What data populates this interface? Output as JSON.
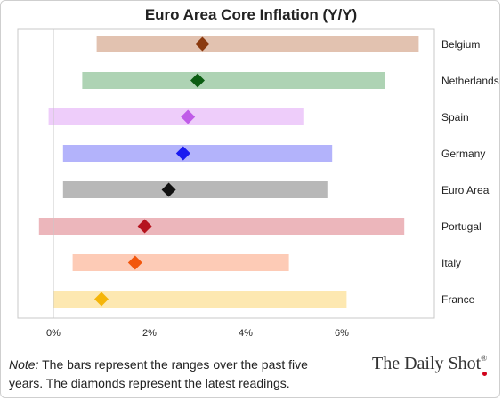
{
  "chart_data": {
    "type": "range-bar",
    "title": "Euro Area Core Inflation (Y/Y)",
    "xlim": [
      -0.3,
      7.7
    ],
    "xticks": [
      0,
      2,
      4,
      6
    ],
    "tick_format": "{v}%",
    "grid": false,
    "rows": [
      {
        "label": "Belgium",
        "min": 0.9,
        "max": 7.6,
        "latest": 3.1,
        "bar_color": "#e2c2b0",
        "marker_color": "#8b3a0f"
      },
      {
        "label": "Netherlands",
        "min": 0.6,
        "max": 6.9,
        "latest": 3.0,
        "bar_color": "#aed3b4",
        "marker_color": "#0b5d12"
      },
      {
        "label": "Spain",
        "min": -0.1,
        "max": 5.2,
        "latest": 2.8,
        "bar_color": "#eecdfa",
        "marker_color": "#c05ce8"
      },
      {
        "label": "Germany",
        "min": 0.2,
        "max": 5.8,
        "latest": 2.7,
        "bar_color": "#b3b3fb",
        "marker_color": "#1a1af0"
      },
      {
        "label": "Euro Area",
        "min": 0.2,
        "max": 5.7,
        "latest": 2.4,
        "bar_color": "#b8b8b8",
        "marker_color": "#111111"
      },
      {
        "label": "Portugal",
        "min": -0.3,
        "max": 7.3,
        "latest": 1.9,
        "bar_color": "#ecb6bb",
        "marker_color": "#b5141e"
      },
      {
        "label": "Italy",
        "min": 0.4,
        "max": 4.9,
        "latest": 1.7,
        "bar_color": "#fdcbb6",
        "marker_color": "#f2560c"
      },
      {
        "label": "France",
        "min": 0.0,
        "max": 6.1,
        "latest": 1.0,
        "bar_color": "#fde8b1",
        "marker_color": "#f5b50a"
      }
    ]
  },
  "note": {
    "lead": "Note:",
    "text": " The bars represent the ranges over the past five years. The diamonds represent the latest readings."
  },
  "brand": {
    "name": "The Daily Shot",
    "reg": "®"
  }
}
